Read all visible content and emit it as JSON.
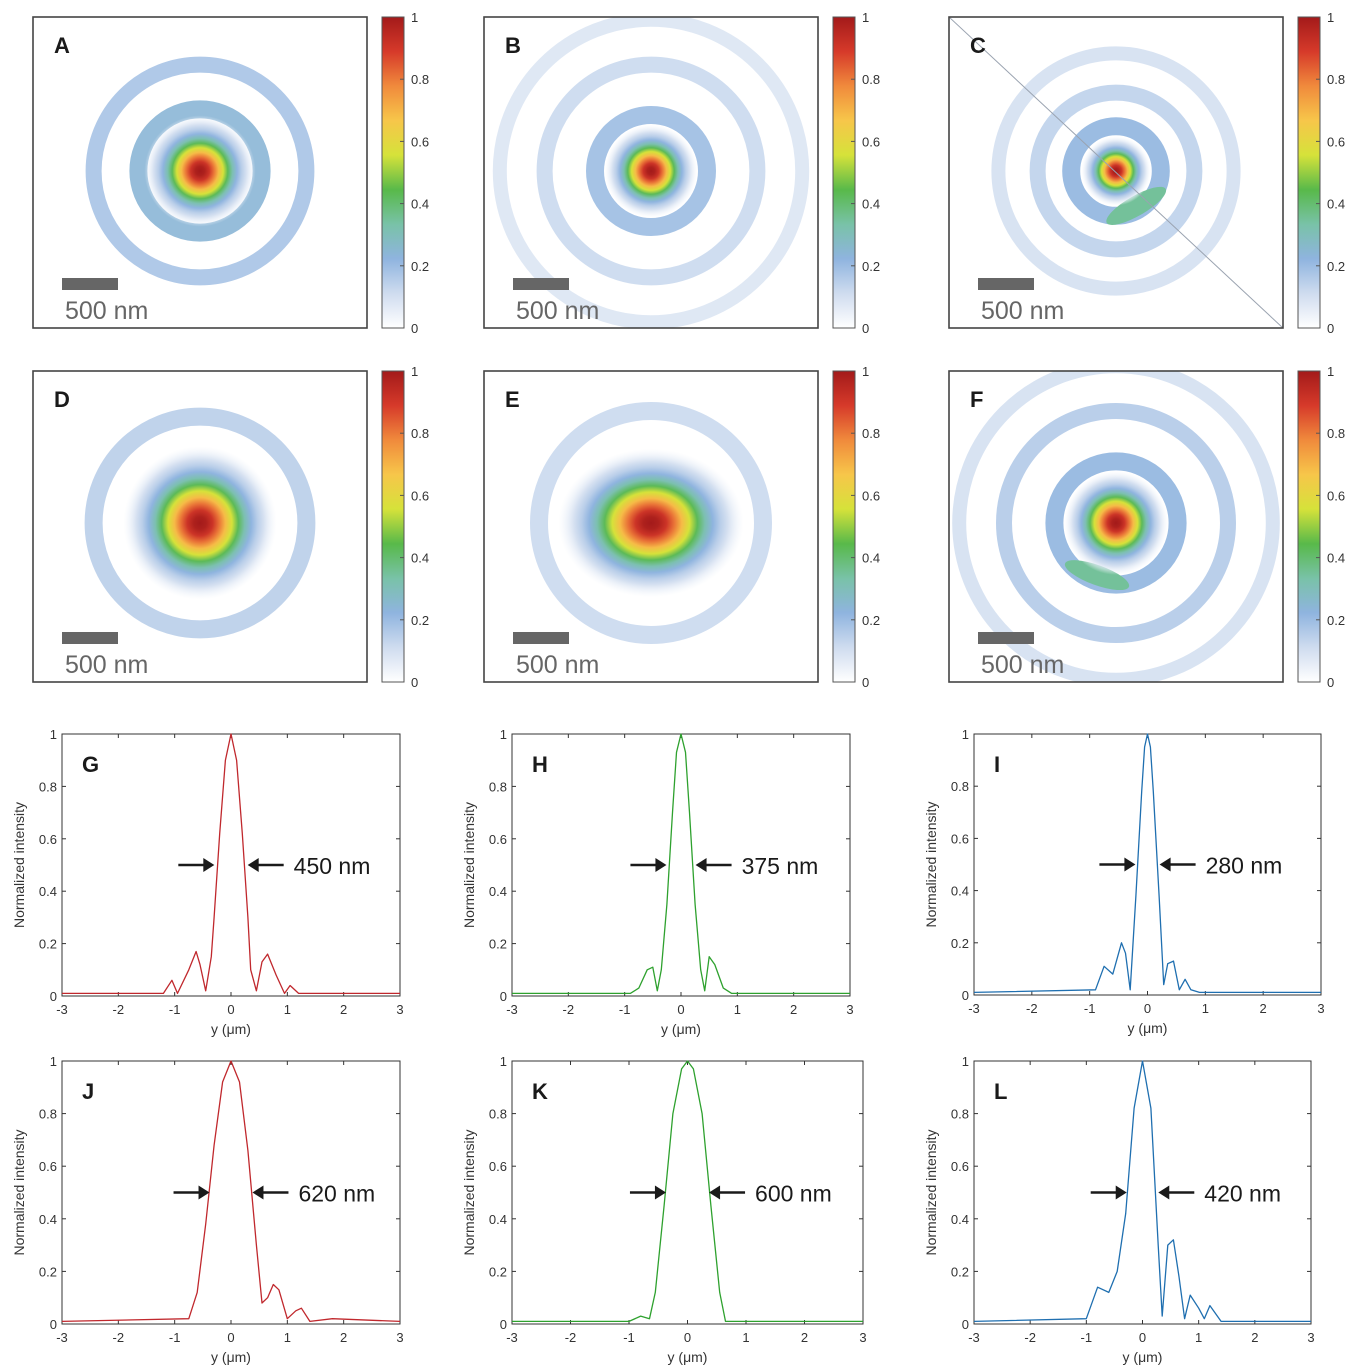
{
  "colormap": {
    "stops": [
      "#ffffff",
      "#cfdcef",
      "#8fb4df",
      "#79c2a8",
      "#58b94a",
      "#d6e23a",
      "#f7c64a",
      "#f08a3c",
      "#d63a2a",
      "#a31a1a"
    ],
    "ticks": [
      "0",
      "0.2",
      "0.4",
      "0.6",
      "0.8",
      "1"
    ]
  },
  "scale_bar_text": "500 nm",
  "focal_maps": [
    {
      "label": "A",
      "fwhm_nm": 450,
      "rings": [
        0.55,
        0.95
      ],
      "ring_strength": [
        0.24,
        0.18
      ],
      "lobe": null,
      "diagonal": false
    },
    {
      "label": "B",
      "fwhm_nm": 375,
      "rings": [
        0.5,
        0.95,
        1.35
      ],
      "ring_strength": [
        0.2,
        0.12,
        0.08
      ],
      "lobe": null,
      "diagonal": false
    },
    {
      "label": "C",
      "fwhm_nm": 280,
      "rings": [
        0.4,
        0.7,
        1.05
      ],
      "ring_strength": [
        0.22,
        0.14,
        0.1
      ],
      "lobe": {
        "value": 0.35,
        "angle_deg": 60
      },
      "diagonal": true
    },
    {
      "label": "D",
      "fwhm_nm": 620,
      "rings": [
        0.95
      ],
      "ring_strength": [
        0.15
      ],
      "lobe": null,
      "diagonal": false
    },
    {
      "label": "E",
      "fwhm_nm": 600,
      "rings": [
        1.0
      ],
      "ring_strength": [
        0.12
      ],
      "lobe": null,
      "diagonal": false
    },
    {
      "label": "F",
      "fwhm_nm": 420,
      "rings": [
        0.55,
        1.0,
        1.4
      ],
      "ring_strength": [
        0.22,
        0.16,
        0.1
      ],
      "lobe": {
        "value": 0.35,
        "angle_deg": 110
      },
      "diagonal": false
    }
  ],
  "chart_data": [
    {
      "type": "line",
      "label": "G",
      "color": "#c0282d",
      "xlabel": "y (μm)",
      "ylabel": "Normalized intensity",
      "xlim": [
        -3,
        3
      ],
      "ylim": [
        0,
        1
      ],
      "x_ticks": [
        "-3",
        "-2",
        "-1",
        "0",
        "1",
        "2",
        "3"
      ],
      "y_ticks": [
        "0",
        "0.2",
        "0.4",
        "0.6",
        "0.8",
        "1"
      ],
      "annotation": "450 nm",
      "fwhm_um": 0.45,
      "x": [
        -3,
        -1.2,
        -1.05,
        -0.95,
        -0.75,
        -0.62,
        -0.55,
        -0.45,
        -0.35,
        -0.3,
        -0.2,
        -0.1,
        0,
        0.1,
        0.2,
        0.3,
        0.35,
        0.45,
        0.55,
        0.65,
        0.8,
        0.95,
        1.05,
        1.2,
        3
      ],
      "y": [
        0.01,
        0.01,
        0.06,
        0.01,
        0.1,
        0.17,
        0.12,
        0.02,
        0.15,
        0.3,
        0.62,
        0.9,
        1.0,
        0.9,
        0.62,
        0.3,
        0.1,
        0.02,
        0.13,
        0.16,
        0.08,
        0.01,
        0.04,
        0.01,
        0.01
      ]
    },
    {
      "type": "line",
      "label": "H",
      "color": "#2ea12e",
      "xlabel": "y (μm)",
      "ylabel": "Normalized intensity",
      "xlim": [
        -3,
        3
      ],
      "ylim": [
        0,
        1
      ],
      "x_ticks": [
        "-3",
        "-2",
        "-1",
        "0",
        "1",
        "2",
        "3"
      ],
      "y_ticks": [
        "0",
        "0.2",
        "0.4",
        "0.6",
        "0.8",
        "1"
      ],
      "annotation": "375 nm",
      "fwhm_um": 0.375,
      "x": [
        -3,
        -0.9,
        -0.75,
        -0.6,
        -0.5,
        -0.42,
        -0.35,
        -0.25,
        -0.15,
        -0.08,
        0,
        0.08,
        0.15,
        0.25,
        0.35,
        0.42,
        0.5,
        0.6,
        0.75,
        0.9,
        3
      ],
      "y": [
        0.01,
        0.01,
        0.03,
        0.1,
        0.11,
        0.02,
        0.1,
        0.35,
        0.7,
        0.93,
        1.0,
        0.93,
        0.7,
        0.35,
        0.1,
        0.02,
        0.15,
        0.12,
        0.03,
        0.01,
        0.01
      ]
    },
    {
      "type": "line",
      "label": "I",
      "color": "#1f6fb0",
      "xlabel": "y (μm)",
      "ylabel": "Normalized intensity",
      "xlim": [
        -3,
        3
      ],
      "ylim": [
        0,
        1
      ],
      "x_ticks": [
        "-3",
        "-2",
        "-1",
        "0",
        "1",
        "2",
        "3"
      ],
      "y_ticks": [
        "0",
        "0.2",
        "0.4",
        "0.6",
        "0.8",
        "1"
      ],
      "annotation": "280 nm",
      "fwhm_um": 0.28,
      "x": [
        -3,
        -0.9,
        -0.75,
        -0.6,
        -0.45,
        -0.38,
        -0.3,
        -0.2,
        -0.1,
        -0.05,
        0,
        0.05,
        0.1,
        0.2,
        0.28,
        0.35,
        0.45,
        0.55,
        0.65,
        0.75,
        0.9,
        3
      ],
      "y": [
        0.01,
        0.02,
        0.11,
        0.08,
        0.2,
        0.16,
        0.02,
        0.38,
        0.78,
        0.95,
        1.0,
        0.95,
        0.78,
        0.38,
        0.04,
        0.12,
        0.13,
        0.02,
        0.06,
        0.02,
        0.01,
        0.01
      ]
    },
    {
      "type": "line",
      "label": "J",
      "color": "#c0282d",
      "xlabel": "y (μm)",
      "ylabel": "Normalized intensity",
      "xlim": [
        -3,
        3
      ],
      "ylim": [
        0,
        1
      ],
      "x_ticks": [
        "-3",
        "-2",
        "-1",
        "0",
        "1",
        "2",
        "3"
      ],
      "y_ticks": [
        "0",
        "0.2",
        "0.4",
        "0.6",
        "0.8",
        "1"
      ],
      "annotation": "620 nm",
      "fwhm_um": 0.62,
      "x": [
        -3,
        -0.75,
        -0.6,
        -0.45,
        -0.3,
        -0.15,
        0,
        0.15,
        0.3,
        0.45,
        0.55,
        0.65,
        0.75,
        0.85,
        1.0,
        1.15,
        1.25,
        1.4,
        1.8,
        3
      ],
      "y": [
        0.01,
        0.02,
        0.12,
        0.38,
        0.68,
        0.92,
        1.0,
        0.92,
        0.66,
        0.3,
        0.08,
        0.1,
        0.15,
        0.13,
        0.02,
        0.05,
        0.06,
        0.01,
        0.02,
        0.01
      ]
    },
    {
      "type": "line",
      "label": "K",
      "color": "#2ea12e",
      "xlabel": "y (μm)",
      "ylabel": "Normalized intensity",
      "xlim": [
        -3,
        3
      ],
      "ylim": [
        0,
        1
      ],
      "x_ticks": [
        "-3",
        "-2",
        "-1",
        "0",
        "1",
        "2",
        "3"
      ],
      "y_ticks": [
        "0",
        "0.2",
        "0.4",
        "0.6",
        "0.8",
        "1"
      ],
      "annotation": "600 nm",
      "fwhm_um": 0.6,
      "x": [
        -3,
        -1.0,
        -0.8,
        -0.65,
        -0.55,
        -0.4,
        -0.25,
        -0.1,
        0,
        0.1,
        0.25,
        0.4,
        0.55,
        0.65,
        3
      ],
      "y": [
        0.01,
        0.01,
        0.03,
        0.02,
        0.12,
        0.45,
        0.8,
        0.97,
        1.0,
        0.97,
        0.8,
        0.45,
        0.12,
        0.01,
        0.01
      ]
    },
    {
      "type": "line",
      "label": "L",
      "color": "#1f6fb0",
      "xlabel": "y (μm)",
      "ylabel": "Normalized intensity",
      "xlim": [
        -3,
        3
      ],
      "ylim": [
        0,
        1
      ],
      "x_ticks": [
        "-3",
        "-2",
        "-1",
        "0",
        "1",
        "2",
        "3"
      ],
      "y_ticks": [
        "0",
        "0.2",
        "0.4",
        "0.6",
        "0.8",
        "1"
      ],
      "annotation": "420 nm",
      "fwhm_um": 0.42,
      "x": [
        -3,
        -1.0,
        -0.8,
        -0.6,
        -0.45,
        -0.3,
        -0.15,
        0,
        0.15,
        0.28,
        0.35,
        0.45,
        0.55,
        0.65,
        0.75,
        0.85,
        1.0,
        1.1,
        1.2,
        1.4,
        3
      ],
      "y": [
        0.01,
        0.02,
        0.14,
        0.12,
        0.2,
        0.42,
        0.82,
        1.0,
        0.82,
        0.3,
        0.03,
        0.3,
        0.32,
        0.18,
        0.02,
        0.11,
        0.06,
        0.02,
        0.07,
        0.01,
        0.01
      ]
    }
  ]
}
